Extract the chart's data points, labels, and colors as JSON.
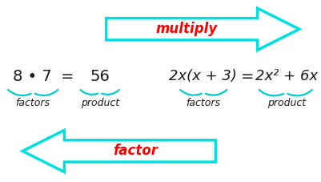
{
  "bg_color": "#ffffff",
  "arrow_color": "#00e0e0",
  "arrow_text_color": "#ff0000",
  "math_text_color": "#1a1a1a",
  "label_text_color": "#1a1a1a",
  "brace_color": "#00cccc",
  "multiply_text": "multiply",
  "factor_text": "factor",
  "eq1_factors": "8 • 7",
  "eq1_equals": "=",
  "eq1_product": "56",
  "eq1_factors_label": "factors",
  "eq1_product_label": "product",
  "eq2_factors": "2x(x + 3)",
  "eq2_equals": "=",
  "eq2_product": "2x² + 6x",
  "eq2_factors_label": "factors",
  "eq2_product_label": "product",
  "figsize": [
    4.02,
    2.27
  ],
  "dpi": 100
}
